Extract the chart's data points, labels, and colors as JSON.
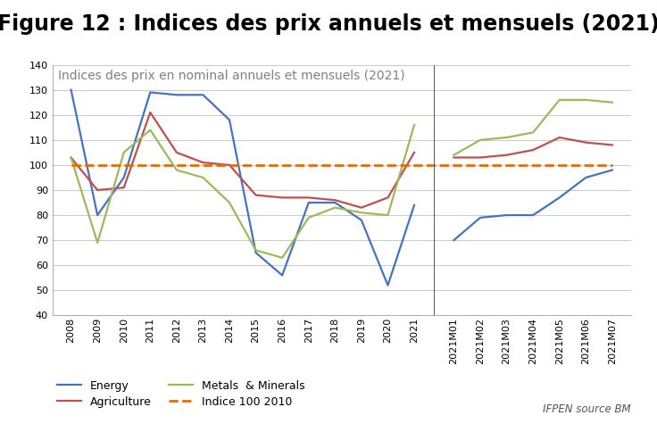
{
  "title": "Figure 12 : Indices des prix annuels et mensuels (2021)",
  "chart_subtitle": "Indices des prix en nominal annuels et mensuels (2021)",
  "source_text": "IFPEN source BM",
  "ylim": [
    40,
    140
  ],
  "yticks": [
    40,
    50,
    60,
    70,
    80,
    90,
    100,
    110,
    120,
    130,
    140
  ],
  "annual_x": [
    2008,
    2009,
    2010,
    2011,
    2012,
    2013,
    2014,
    2015,
    2016,
    2017,
    2018,
    2019,
    2020,
    2021
  ],
  "energy_annual": [
    130,
    80,
    95,
    129,
    128,
    128,
    118,
    65,
    56,
    85,
    85,
    78,
    52,
    84
  ],
  "agri_annual": [
    103,
    90,
    91,
    121,
    105,
    101,
    100,
    88,
    87,
    87,
    86,
    83,
    87,
    105
  ],
  "metals_annual": [
    103,
    69,
    105,
    114,
    98,
    95,
    85,
    66,
    63,
    79,
    83,
    81,
    80,
    116
  ],
  "monthly_x": [
    "2021M01",
    "2021M02",
    "2021M03",
    "2021M04",
    "2021M05",
    "2021M06",
    "2021M07"
  ],
  "energy_monthly": [
    70,
    79,
    80,
    80,
    87,
    95,
    98
  ],
  "agri_monthly": [
    103,
    103,
    104,
    106,
    111,
    109,
    108
  ],
  "metals_monthly": [
    104,
    110,
    111,
    113,
    126,
    126,
    125
  ],
  "indice100_value": 100,
  "energy_color": "#4472C4",
  "agri_color": "#C0504D",
  "metals_color": "#9BBB59",
  "indice_color": "#E36C09",
  "bg_color": "#FFFFFF",
  "plot_bg_color": "#FFFFFF",
  "grid_color": "#C0C0C0",
  "title_fontsize": 17,
  "subtitle_fontsize": 10,
  "tick_fontsize": 8,
  "legend_fontsize": 9,
  "source_fontsize": 8.5
}
